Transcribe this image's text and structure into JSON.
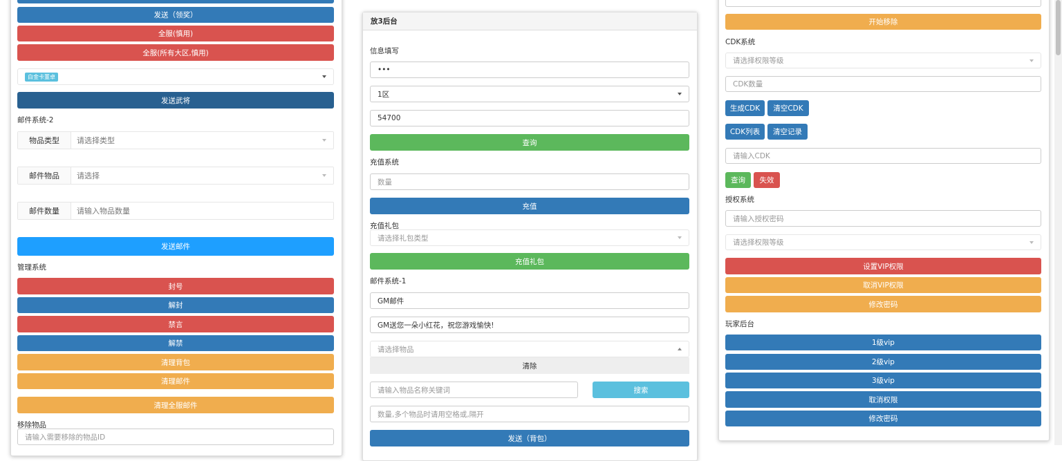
{
  "left": {
    "buttons": [
      "发送（领奖）",
      "全服(慎用)",
      "全服(所有大区,慎用)"
    ],
    "hero_tag": "白金卡董卓",
    "send_hero": "发送武将",
    "mail2_title": "邮件系统-2",
    "mail2_rows": [
      {
        "label": "物品类型",
        "placeholder": "请选择类型"
      },
      {
        "label": "邮件物品",
        "placeholder": "请选择"
      },
      {
        "label": "邮件数量",
        "placeholder": "请输入物品数量"
      }
    ],
    "send_mail": "发送邮件",
    "admin_title": "管理系统",
    "admin_buttons": [
      "封号",
      "解封",
      "禁言",
      "解禁",
      "清理背包",
      "清理邮件"
    ],
    "clear_all_mail": "清理全服邮件",
    "remove_title": "移除物品",
    "remove_placeholder": "请输入需要移除的物品ID"
  },
  "middle": {
    "header": "放3后台",
    "info_title": "信息填写",
    "password": "•••",
    "zone": "1区",
    "role_id": "54700",
    "query": "查询",
    "recharge_title": "充值系统",
    "amount_placeholder": "数量",
    "recharge": "充值",
    "gift_title": "充值礼包",
    "gift_placeholder": "请选择礼包类型",
    "gift_button": "充值礼包",
    "mail1_title": "邮件系统-1",
    "mail_subject": "GM邮件",
    "mail_body": "GM送您一朵小红花，祝您游戏愉快!",
    "item_placeholder": "请选择物品",
    "clear": "清除",
    "search_placeholder": "请输入物品名称关键词",
    "search": "搜索",
    "qty_placeholder": "数量,多个物品时请用空格或,隔开",
    "send_bag": "发送（背包）"
  },
  "right": {
    "start_remove": "开始移除",
    "cdk_title": "CDK系统",
    "level_placeholder": "请选择权限等级",
    "cdk_count_placeholder": "CDK数量",
    "gen_cdk": "生成CDK",
    "clear_cdk": "清空CDK",
    "cdk_list": "CDK列表",
    "clear_log": "清空记录",
    "cdk_input_placeholder": "请输入CDK",
    "query": "查询",
    "invalidate": "失效",
    "auth_title": "授权系统",
    "auth_pwd_placeholder": "请输入授权密码",
    "set_vip": "设置VIP权限",
    "cancel_vip": "取消VIP权限",
    "change_pwd": "修改密码",
    "player_title": "玩家后台",
    "player_buttons": [
      "1级vip",
      "2级vip",
      "3级vip",
      "取消权限",
      "修改密码"
    ]
  },
  "colors": {
    "primary": "#337ab7",
    "danger": "#d9534f",
    "warning": "#f0ad4e",
    "success": "#5cb85c",
    "info": "#5bc0de",
    "normal": "#1e9fff"
  }
}
